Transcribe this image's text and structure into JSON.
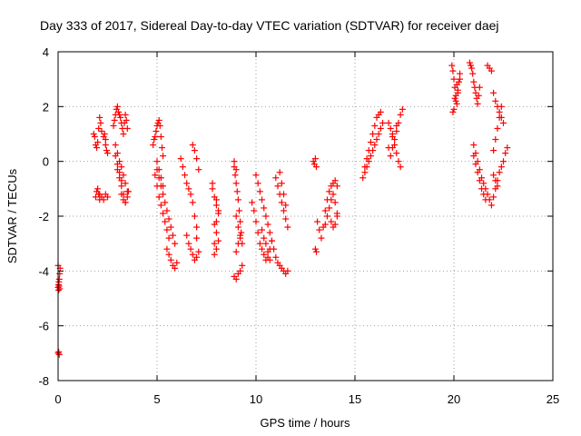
{
  "chart_data": {
    "type": "scatter",
    "title": "Day 333 of 2017, Sidereal Day-to-day VTEC variation (SDTVAR) for receiver daej",
    "xlabel": "GPS time / hours",
    "ylabel": "SDTVAR / TECUs",
    "xlim": [
      0,
      25
    ],
    "ylim": [
      -8,
      4
    ],
    "xticks": [
      0,
      5,
      10,
      15,
      20,
      25
    ],
    "yticks": [
      -8,
      -6,
      -4,
      -2,
      0,
      2,
      4
    ],
    "grid": true,
    "marker": "+",
    "color": "#ff0000",
    "series": [
      {
        "name": "SDTVAR",
        "x": [
          0.0,
          0.02,
          0.04,
          0.06,
          0.08,
          0.1,
          0.0,
          0.02,
          0.05,
          0.08,
          0.0,
          0.03,
          0.06,
          1.8,
          1.85,
          1.9,
          1.95,
          2.0,
          2.05,
          2.1,
          2.15,
          2.2,
          2.0,
          2.05,
          2.1,
          1.9,
          1.95,
          2.1,
          2.2,
          2.3,
          2.4,
          2.5,
          2.45,
          2.4,
          2.35,
          2.3,
          2.4,
          2.5,
          2.8,
          2.85,
          2.9,
          2.95,
          3.0,
          3.05,
          3.1,
          3.15,
          3.2,
          3.25,
          3.3,
          3.35,
          3.4,
          3.45,
          3.5,
          2.9,
          3.0,
          3.1,
          3.2,
          3.3,
          3.4,
          3.5,
          3.2,
          3.3,
          3.4,
          3.5,
          3.55,
          3.0,
          3.1,
          3.2,
          3.3,
          3.4,
          2.9,
          3.0,
          3.1,
          3.2,
          4.8,
          4.85,
          4.9,
          4.95,
          5.0,
          5.05,
          5.1,
          5.15,
          5.2,
          5.25,
          5.3,
          5.0,
          5.1,
          5.2,
          5.3,
          5.4,
          5.5,
          5.6,
          5.7,
          5.8,
          5.9,
          4.9,
          5.0,
          5.1,
          5.2,
          5.3,
          5.4,
          5.5,
          5.6,
          5.5,
          5.6,
          5.7,
          5.8,
          5.9,
          6.0,
          5.0,
          5.1,
          5.2,
          5.3,
          6.2,
          6.3,
          6.4,
          6.5,
          6.6,
          6.7,
          6.8,
          6.9,
          7.0,
          6.5,
          6.6,
          6.7,
          6.8,
          6.9,
          7.0,
          7.1,
          6.8,
          6.9,
          7.0,
          7.1,
          7.0,
          7.8,
          7.9,
          8.0,
          8.1,
          7.9,
          8.0,
          8.1,
          8.0,
          7.9,
          8.0,
          8.1,
          8.0,
          7.8,
          7.9,
          8.9,
          8.95,
          9.0,
          9.05,
          9.1,
          9.15,
          9.2,
          9.25,
          9.3,
          9.0,
          9.1,
          9.2,
          8.9,
          9.0,
          9.1,
          9.2,
          9.3,
          9.0,
          9.1,
          9.2,
          8.9,
          9.0,
          9.8,
          9.9,
          10.0,
          10.1,
          10.2,
          10.3,
          10.4,
          10.5,
          10.6,
          10.7,
          10.8,
          10.0,
          10.1,
          10.2,
          10.3,
          10.4,
          10.5,
          10.6,
          10.7,
          10.8,
          10.9,
          11.0,
          11.1,
          11.2,
          11.3,
          11.4,
          11.5,
          11.6,
          11.0,
          11.1,
          11.2,
          11.3,
          11.4,
          11.5,
          11.6,
          10.3,
          10.4,
          10.5,
          10.6,
          10.7,
          11.2,
          11.3,
          11.4,
          11.5,
          12.9,
          12.95,
          13.0,
          13.05,
          13.1,
          13.2,
          13.3,
          13.4,
          13.5,
          13.6,
          13.7,
          13.8,
          13.9,
          14.0,
          14.1,
          13.5,
          13.6,
          13.7,
          13.8,
          13.9,
          14.0,
          14.1,
          13.8,
          13.9,
          14.0,
          14.1,
          13.0,
          13.05,
          15.4,
          15.5,
          15.6,
          15.7,
          15.8,
          15.9,
          16.0,
          16.1,
          16.2,
          16.3,
          16.4,
          15.5,
          15.6,
          15.7,
          15.8,
          15.9,
          16.0,
          16.1,
          16.2,
          16.3,
          16.7,
          16.8,
          16.9,
          17.0,
          17.1,
          17.2,
          17.3,
          16.8,
          16.9,
          17.0,
          17.1,
          17.2,
          17.3,
          17.4,
          16.7,
          16.9,
          17.1,
          19.9,
          19.95,
          20.0,
          20.05,
          20.1,
          20.15,
          20.2,
          20.25,
          20.3,
          20.0,
          20.1,
          20.2,
          20.3,
          19.95,
          20.05,
          20.15,
          20.8,
          20.85,
          20.9,
          20.95,
          21.0,
          21.05,
          21.1,
          21.15,
          21.2,
          21.25,
          21.3,
          21.0,
          21.1,
          21.2,
          21.3,
          21.4,
          21.5,
          21.6,
          21.0,
          21.1,
          21.2,
          21.3,
          21.4,
          21.5,
          21.6,
          21.7,
          21.8,
          21.9,
          22.0,
          22.1,
          22.2,
          22.3,
          22.4,
          22.5,
          22.6,
          22.7,
          21.7,
          21.8,
          21.9,
          22.0,
          22.1,
          22.2,
          22.3,
          22.4,
          22.5,
          22.0,
          22.1,
          22.2,
          22.3,
          22.4,
          22.0,
          22.1,
          22.2
        ],
        "y": [
          -4.6,
          -4.5,
          -4.4,
          -4.3,
          -4.1,
          -3.9,
          -3.8,
          -4.7,
          -4.55,
          -4.65,
          -7.0,
          -6.95,
          -7.05,
          1.0,
          0.9,
          0.6,
          0.5,
          0.7,
          1.2,
          1.6,
          1.4,
          1.1,
          -1.0,
          -1.2,
          -1.4,
          -1.3,
          -1.1,
          -1.2,
          -1.3,
          -1.4,
          -1.2,
          -1.3,
          0.4,
          0.8,
          1.0,
          0.9,
          0.6,
          0.3,
          1.3,
          1.5,
          1.7,
          1.9,
          2.0,
          1.8,
          1.7,
          1.6,
          1.4,
          1.2,
          1.0,
          1.4,
          1.7,
          1.5,
          1.2,
          0.6,
          0.3,
          0.0,
          -0.2,
          -0.5,
          -0.8,
          -1.1,
          -1.2,
          -1.4,
          -1.5,
          -1.3,
          -1.1,
          -0.3,
          -0.6,
          -0.9,
          -1.2,
          -1.5,
          0.2,
          -0.1,
          -0.4,
          -0.7,
          0.6,
          0.8,
          0.9,
          1.1,
          1.3,
          1.4,
          1.5,
          1.3,
          0.9,
          0.5,
          0.2,
          -0.3,
          -0.6,
          -0.9,
          -1.2,
          -1.5,
          -1.8,
          -2.1,
          -2.4,
          -2.7,
          -3.0,
          -0.5,
          -0.9,
          -1.3,
          -1.6,
          -1.9,
          -2.2,
          -2.5,
          -2.8,
          -3.2,
          -3.4,
          -3.6,
          -3.8,
          -3.9,
          -3.7,
          0.0,
          -0.3,
          -0.6,
          -0.9,
          0.1,
          -0.2,
          -0.5,
          -0.8,
          -1.0,
          -1.2,
          -1.5,
          -2.0,
          -2.4,
          -2.7,
          -3.0,
          -3.2,
          -3.4,
          -3.6,
          -3.5,
          -3.3,
          0.6,
          0.4,
          0.1,
          -0.3,
          -2.8,
          -1.0,
          -1.3,
          -1.6,
          -1.9,
          -2.3,
          -2.6,
          -2.9,
          -3.2,
          -3.4,
          -2.2,
          -1.8,
          -1.4,
          -0.8,
          -3.0,
          -0.2,
          -0.5,
          -0.8,
          -1.1,
          -1.4,
          -1.8,
          -2.2,
          -2.6,
          -3.0,
          -2.0,
          -2.4,
          -2.8,
          -4.2,
          -4.3,
          -4.1,
          -4.0,
          -3.8,
          -3.3,
          -3.0,
          -2.7,
          0.0,
          -0.3,
          -1.5,
          -1.8,
          -2.2,
          -2.6,
          -3.0,
          -3.2,
          -3.4,
          -3.6,
          -3.5,
          -3.2,
          -2.9,
          -0.5,
          -0.8,
          -1.1,
          -1.4,
          -1.7,
          -2.0,
          -2.3,
          -2.6,
          -2.9,
          -3.2,
          -3.5,
          -3.7,
          -3.8,
          -3.9,
          -4.0,
          -4.1,
          -4.0,
          -0.6,
          -0.9,
          -1.2,
          -1.5,
          -1.8,
          -2.1,
          -2.4,
          -2.5,
          -2.8,
          -3.0,
          -3.3,
          -3.6,
          -0.4,
          -0.8,
          -1.2,
          -1.6,
          0.0,
          -0.1,
          0.1,
          -0.2,
          -2.2,
          -2.5,
          -2.8,
          -2.4,
          -1.8,
          -1.4,
          -1.1,
          -0.9,
          -0.8,
          -0.7,
          -0.9,
          -2.3,
          -2.0,
          -1.7,
          -1.4,
          -1.2,
          -1.5,
          -1.9,
          -2.2,
          -2.4,
          -2.3,
          -2.0,
          -3.2,
          -3.3,
          -0.6,
          -0.4,
          -0.2,
          0.0,
          0.2,
          0.4,
          0.6,
          0.8,
          1.0,
          1.2,
          1.4,
          -0.2,
          0.1,
          0.4,
          0.7,
          1.0,
          1.3,
          1.6,
          1.7,
          1.8,
          1.4,
          1.2,
          0.9,
          0.6,
          0.3,
          0.0,
          -0.2,
          0.2,
          0.5,
          0.8,
          1.1,
          1.4,
          1.7,
          1.9,
          0.5,
          1.0,
          1.3,
          3.5,
          3.3,
          3.0,
          2.7,
          2.4,
          2.1,
          2.5,
          2.9,
          3.2,
          1.9,
          2.2,
          2.6,
          3.0,
          1.8,
          2.3,
          2.8,
          3.6,
          3.5,
          3.4,
          3.2,
          2.9,
          2.7,
          2.5,
          2.3,
          2.1,
          2.4,
          2.7,
          0.2,
          -0.1,
          -0.4,
          -0.7,
          -1.0,
          -1.2,
          -1.4,
          0.6,
          0.3,
          0.0,
          -0.3,
          -0.6,
          -0.8,
          -1.0,
          -1.2,
          -1.4,
          -1.6,
          -1.3,
          -1.0,
          -0.7,
          -0.4,
          -0.2,
          0.0,
          0.3,
          0.5,
          3.5,
          3.4,
          3.3,
          2.5,
          2.2,
          2.0,
          1.8,
          1.6,
          1.4,
          0.4,
          0.8,
          1.2,
          1.6,
          2.0,
          -0.5,
          -0.7,
          -0.9
        ]
      }
    ]
  }
}
